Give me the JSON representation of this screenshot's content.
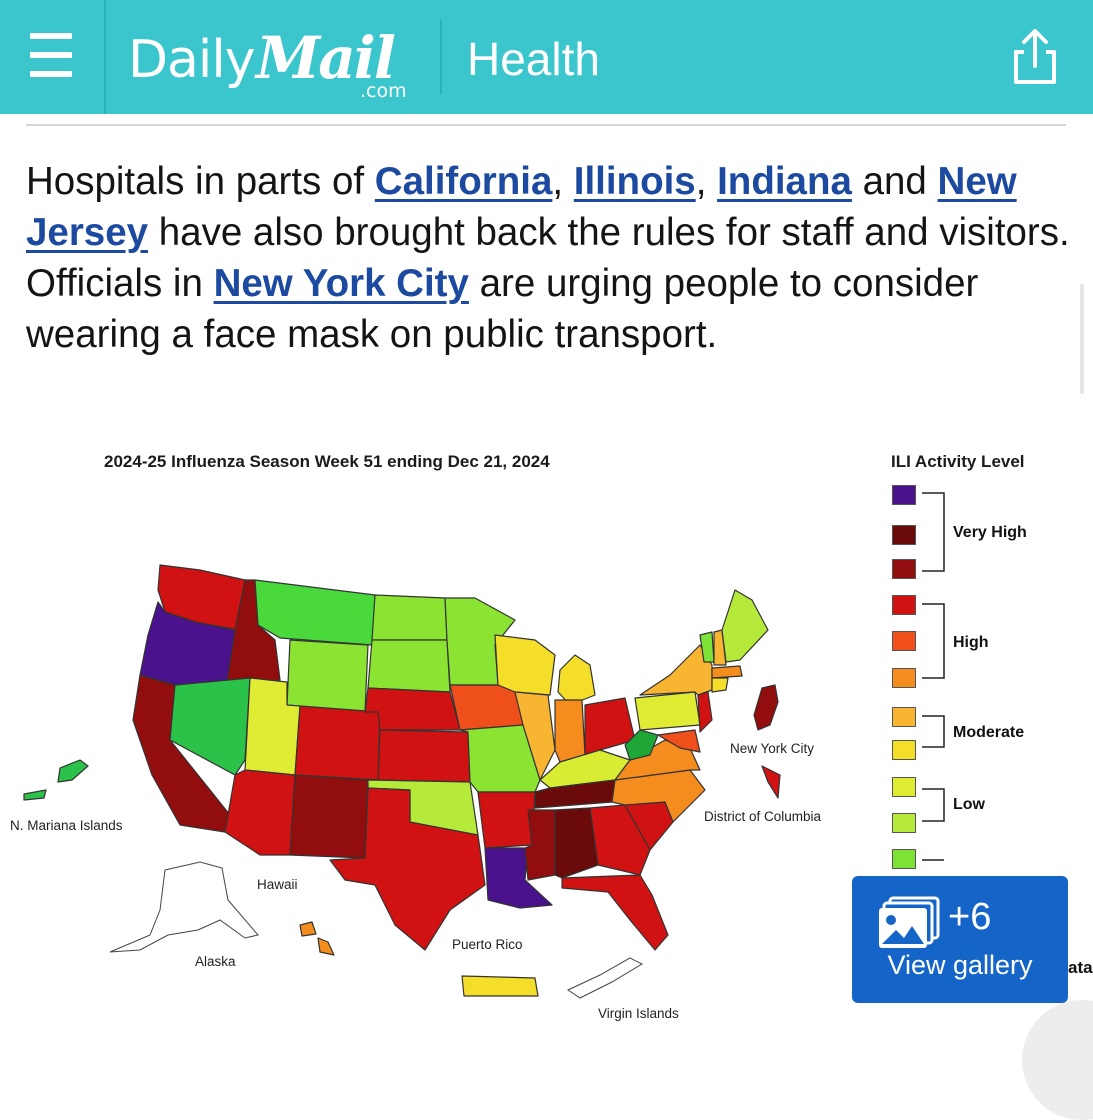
{
  "header": {
    "logo_daily": "Daily",
    "logo_mail": "Mail",
    "logo_com": ".com",
    "section": "Health",
    "menu_icon": "hamburger-menu-icon",
    "share_icon": "share-icon",
    "background_color": "#3ac6cc"
  },
  "article": {
    "t1": "Hospitals in parts of ",
    "link_california": "California",
    "t2": ", ",
    "link_illinois": "Illinois",
    "t3": ", ",
    "link_indiana": "Indiana",
    "t4": " and ",
    "link_new_jersey": "New Jersey",
    "t5": " have also brought back the rules for staff and visitors. Officials in ",
    "link_new_york_city": "New York City",
    "t6": " are urging people to consider wearing a face mask on public transport.",
    "link_color": "#1c4aa0"
  },
  "map": {
    "title": "2024-25 Influenza Season Week 51 ending Dec 21, 2024",
    "labels": {
      "new_york_city": "New York City",
      "district_of_columbia": "District of Columbia",
      "n_mariana_islands": "N. Mariana Islands",
      "hawaii": "Hawaii",
      "alaska": "Alaska",
      "puerto_rico": "Puerto Rico",
      "virgin_islands": "Virgin Islands"
    }
  },
  "legend": {
    "title": "ILI Activity Level",
    "levels": [
      {
        "color": "#4a128c"
      },
      {
        "color": "#6b0a0a"
      },
      {
        "color": "#920d0d"
      },
      {
        "color": "#d11212"
      },
      {
        "color": "#ef4f1a"
      },
      {
        "color": "#f58d1e"
      },
      {
        "color": "#f7b532"
      },
      {
        "color": "#f5de2a"
      },
      {
        "color": "#e0ec34"
      },
      {
        "color": "#b5ea3a"
      },
      {
        "color": "#7ee136"
      }
    ],
    "groups": {
      "very_high": "Very High",
      "high": "High",
      "moderate": "Moderate",
      "low": "Low"
    },
    "cutoff_text": "ata"
  },
  "gallery": {
    "count": "+6",
    "label": "View gallery",
    "icon": "gallery-images-icon",
    "background_color": "#1565c8"
  }
}
